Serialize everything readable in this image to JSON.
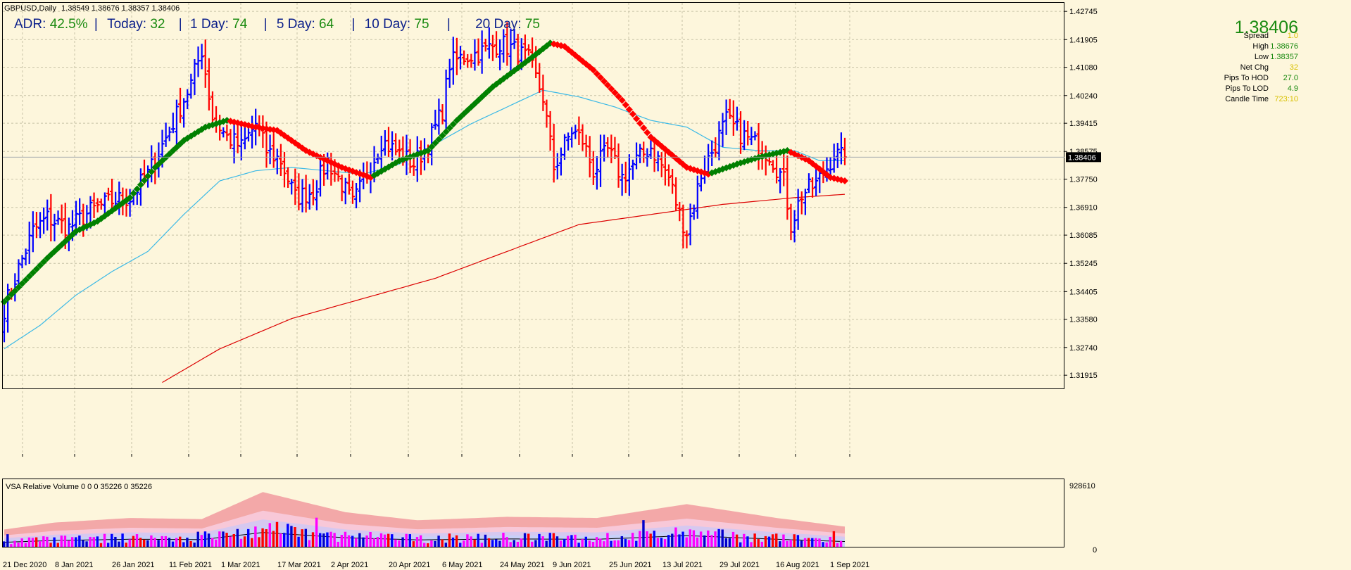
{
  "header": {
    "symbol": "GBPUSD,Daily",
    "ohlc": "1.38549 1.38676 1.38357 1.38406"
  },
  "adr_bar": {
    "adr_label": "ADR:",
    "adr_value": "42.5%",
    "today_label": "Today:",
    "today_value": "32",
    "d1_label": "1 Day:",
    "d1_value": "74",
    "d5_label": "5 Day:",
    "d5_value": "64",
    "d10_label": "10 Day:",
    "d10_value": "75",
    "d20_label": "20 Day:",
    "d20_value": "75",
    "separator": "|"
  },
  "info_panel": {
    "price": "1.38406",
    "rows": [
      {
        "label": "Spread",
        "value": "1.0"
      },
      {
        "label": "High",
        "value": "1.38676"
      },
      {
        "label": "Low",
        "value": "1.38357"
      },
      {
        "label": "Net Chg",
        "value": "32"
      },
      {
        "label": "Pips To HOD",
        "value": "27.0"
      },
      {
        "label": "Pips To LOD",
        "value": "4.9"
      },
      {
        "label": "Candle Time",
        "value": "723:10"
      }
    ]
  },
  "volume_panel": {
    "title": "VSA Relative Volume 0 0 0 35226 0 35226",
    "max_label": "928610",
    "min_label": "0"
  },
  "colors": {
    "background": "#fdf6dc",
    "up_bar": "#0000ff",
    "down_bar": "#ff0000",
    "ma_up": "#008000",
    "ma_down": "#ff0000",
    "ma_fast": "#3bb9e6",
    "ma_slow": "#dc0000",
    "grid": "#c7c2a6"
  },
  "chart_data": {
    "type": "ohlc",
    "symbol": "GBPUSD",
    "timeframe": "Daily",
    "x_tick_labels": [
      "21 Dec 2020",
      "8 Jan 2021",
      "26 Jan 2021",
      "11 Feb 2021",
      "1 Mar 2021",
      "17 Mar 2021",
      "2 Apr 2021",
      "20 Apr 2021",
      "6 May 2021",
      "24 May 2021",
      "9 Jun 2021",
      "25 Jun 2021",
      "13 Jul 2021",
      "29 Jul 2021",
      "16 Aug 2021",
      "1 Sep 2021"
    ],
    "y_tick_labels": [
      "1.42745",
      "1.41905",
      "1.41080",
      "1.40240",
      "1.39415",
      "1.38575",
      "1.37750",
      "1.36910",
      "1.36085",
      "1.35245",
      "1.34405",
      "1.33580",
      "1.32740",
      "1.31915"
    ],
    "ylim": [
      1.315,
      1.43
    ],
    "current_price": 1.38406,
    "close_anchors": [
      [
        0,
        1.339
      ],
      [
        4,
        1.351
      ],
      [
        8,
        1.362
      ],
      [
        12,
        1.366
      ],
      [
        18,
        1.363
      ],
      [
        24,
        1.368
      ],
      [
        30,
        1.371
      ],
      [
        35,
        1.372
      ],
      [
        40,
        1.379
      ],
      [
        46,
        1.392
      ],
      [
        52,
        1.406
      ],
      [
        55,
        1.416
      ],
      [
        58,
        1.396
      ],
      [
        62,
        1.39
      ],
      [
        66,
        1.387
      ],
      [
        70,
        1.394
      ],
      [
        73,
        1.386
      ],
      [
        77,
        1.383
      ],
      [
        81,
        1.372
      ],
      [
        86,
        1.374
      ],
      [
        90,
        1.383
      ],
      [
        94,
        1.376
      ],
      [
        97,
        1.37
      ],
      [
        101,
        1.379
      ],
      [
        105,
        1.389
      ],
      [
        110,
        1.385
      ],
      [
        114,
        1.382
      ],
      [
        118,
        1.388
      ],
      [
        122,
        1.398
      ],
      [
        124,
        1.412
      ],
      [
        128,
        1.414
      ],
      [
        132,
        1.415
      ],
      [
        136,
        1.417
      ],
      [
        138,
        1.418
      ],
      [
        142,
        1.416
      ],
      [
        146,
        1.413
      ],
      [
        150,
        1.402
      ],
      [
        153,
        1.381
      ],
      [
        158,
        1.392
      ],
      [
        161,
        1.389
      ],
      [
        164,
        1.38
      ],
      [
        168,
        1.386
      ],
      [
        172,
        1.378
      ],
      [
        176,
        1.383
      ],
      [
        180,
        1.387
      ],
      [
        185,
        1.378
      ],
      [
        188,
        1.367
      ],
      [
        190,
        1.362
      ],
      [
        194,
        1.379
      ],
      [
        198,
        1.388
      ],
      [
        201,
        1.395
      ],
      [
        205,
        1.391
      ],
      [
        209,
        1.388
      ],
      [
        213,
        1.385
      ],
      [
        217,
        1.377
      ],
      [
        219,
        1.364
      ],
      [
        222,
        1.373
      ],
      [
        226,
        1.376
      ],
      [
        229,
        1.381
      ],
      [
        231,
        1.385
      ],
      [
        233,
        1.384
      ]
    ],
    "ma_trend_anchors": [
      [
        0,
        1.341
      ],
      [
        12,
        1.354
      ],
      [
        20,
        1.362
      ],
      [
        26,
        1.365
      ],
      [
        35,
        1.372
      ],
      [
        42,
        1.381
      ],
      [
        50,
        1.389
      ],
      [
        56,
        1.393
      ],
      [
        62,
        1.395
      ],
      [
        70,
        1.393
      ],
      [
        76,
        1.392
      ],
      [
        84,
        1.386
      ],
      [
        94,
        1.381
      ],
      [
        102,
        1.378
      ],
      [
        110,
        1.383
      ],
      [
        118,
        1.386
      ],
      [
        126,
        1.395
      ],
      [
        136,
        1.405
      ],
      [
        146,
        1.413
      ],
      [
        152,
        1.418
      ],
      [
        156,
        1.417
      ],
      [
        164,
        1.41
      ],
      [
        172,
        1.401
      ],
      [
        180,
        1.39
      ],
      [
        190,
        1.381
      ],
      [
        196,
        1.379
      ],
      [
        204,
        1.382
      ],
      [
        210,
        1.384
      ],
      [
        214,
        1.385
      ],
      [
        218,
        1.386
      ],
      [
        224,
        1.383
      ],
      [
        230,
        1.378
      ],
      [
        234,
        1.377
      ]
    ],
    "ma_fast_anchors": [
      [
        0,
        1.327
      ],
      [
        10,
        1.334
      ],
      [
        20,
        1.343
      ],
      [
        30,
        1.35
      ],
      [
        40,
        1.356
      ],
      [
        50,
        1.367
      ],
      [
        60,
        1.377
      ],
      [
        70,
        1.38
      ],
      [
        80,
        1.381
      ],
      [
        90,
        1.38
      ],
      [
        100,
        1.379
      ],
      [
        110,
        1.382
      ],
      [
        120,
        1.388
      ],
      [
        130,
        1.394
      ],
      [
        140,
        1.399
      ],
      [
        150,
        1.404
      ],
      [
        160,
        1.402
      ],
      [
        170,
        1.399
      ],
      [
        180,
        1.395
      ],
      [
        190,
        1.393
      ],
      [
        200,
        1.387
      ],
      [
        210,
        1.386
      ],
      [
        220,
        1.386
      ],
      [
        227,
        1.383
      ],
      [
        234,
        1.383
      ]
    ],
    "ma_slow_anchors": [
      [
        44,
        1.317
      ],
      [
        60,
        1.327
      ],
      [
        80,
        1.336
      ],
      [
        100,
        1.342
      ],
      [
        120,
        1.348
      ],
      [
        140,
        1.356
      ],
      [
        160,
        1.364
      ],
      [
        180,
        1.367
      ],
      [
        200,
        1.37
      ],
      [
        220,
        1.372
      ],
      [
        234,
        1.373
      ]
    ],
    "volume": {
      "max": 928610,
      "min": 0,
      "envelope_peaks": [
        [
          0,
          0.3
        ],
        [
          14,
          0.42
        ],
        [
          35,
          0.5
        ],
        [
          55,
          0.48
        ],
        [
          72,
          0.95
        ],
        [
          95,
          0.6
        ],
        [
          115,
          0.46
        ],
        [
          140,
          0.52
        ],
        [
          165,
          0.5
        ],
        [
          190,
          0.74
        ],
        [
          215,
          0.5
        ],
        [
          234,
          0.35
        ]
      ]
    }
  }
}
